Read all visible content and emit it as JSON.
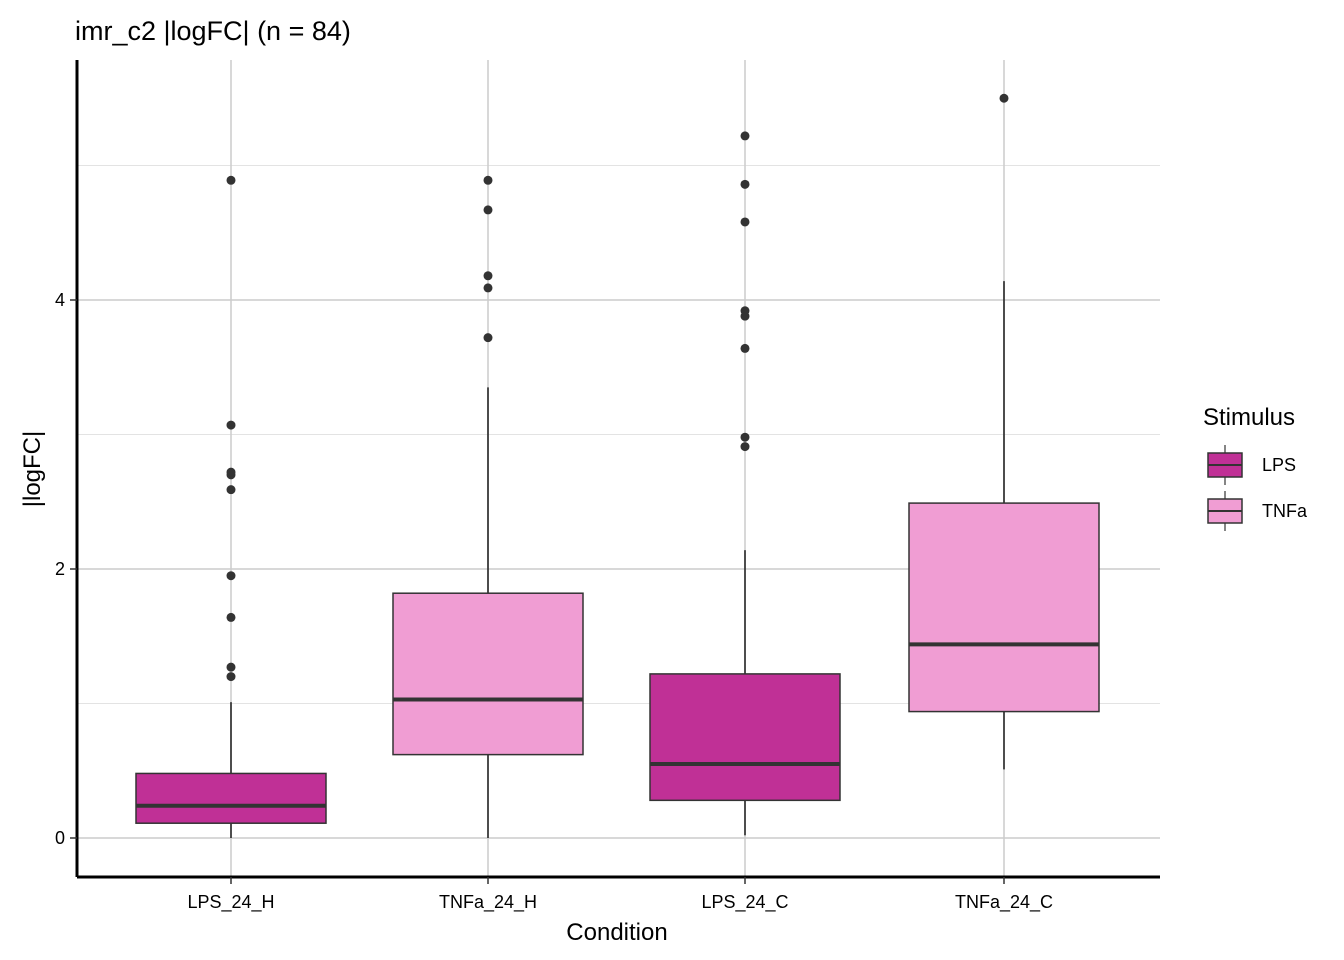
{
  "chart_data": {
    "type": "boxplot",
    "title": "imr_c2 |logFC| (n = 84)",
    "xlabel": "Condition",
    "ylabel": "|logFC|",
    "ylim": [
      -0.25,
      5.7
    ],
    "yticks": [
      0,
      2,
      4
    ],
    "ytick_labels": [
      "0",
      "2",
      "4"
    ],
    "grid": true,
    "categories": [
      "LPS_24_H",
      "TNFa_24_H",
      "LPS_24_C",
      "TNFa_24_C"
    ],
    "boxes": [
      {
        "category": "LPS_24_H",
        "stimulus": "LPS",
        "q1": 0.11,
        "median": 0.24,
        "q3": 0.48,
        "whisker_low": 0.0,
        "whisker_high": 1.01,
        "outliers": [
          1.2,
          1.27,
          1.64,
          1.95,
          2.59,
          2.7,
          2.72,
          3.07,
          4.89
        ]
      },
      {
        "category": "TNFa_24_H",
        "stimulus": "TNFa",
        "q1": 0.62,
        "median": 1.03,
        "q3": 1.82,
        "whisker_low": 0.0,
        "whisker_high": 3.35,
        "outliers": [
          3.72,
          4.09,
          4.18,
          4.67,
          4.89
        ]
      },
      {
        "category": "LPS_24_C",
        "stimulus": "LPS",
        "q1": 0.28,
        "median": 0.55,
        "q3": 1.22,
        "whisker_low": 0.02,
        "whisker_high": 2.14,
        "outliers": [
          2.91,
          2.98,
          3.64,
          3.88,
          3.92,
          4.58,
          4.86,
          5.22
        ]
      },
      {
        "category": "TNFa_24_C",
        "stimulus": "TNFa",
        "q1": 0.94,
        "median": 1.44,
        "q3": 2.49,
        "whisker_low": 0.51,
        "whisker_high": 4.14,
        "outliers": [
          5.5
        ]
      }
    ],
    "legend": {
      "title": "Stimulus",
      "position": "right",
      "items": [
        {
          "label": "LPS",
          "color": "#c03096"
        },
        {
          "label": "TNFa",
          "color": "#f09dd3"
        }
      ]
    }
  }
}
